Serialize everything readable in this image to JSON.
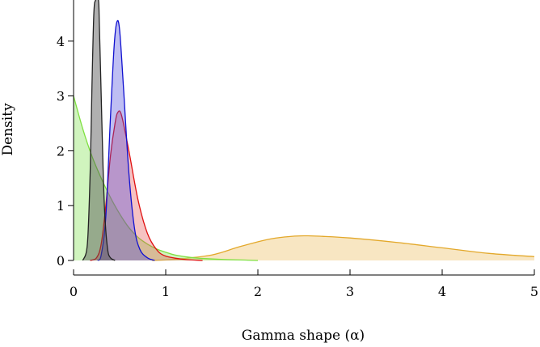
{
  "chart_data": {
    "type": "area",
    "title": "",
    "xlabel": "Gamma shape (α)",
    "ylabel": "Density",
    "xlim": [
      0,
      5
    ],
    "ylim": [
      0,
      4.75
    ],
    "x_ticks": [
      0,
      1,
      2,
      3,
      4,
      5
    ],
    "y_ticks": [
      0,
      1,
      2,
      3,
      4
    ],
    "grid": false,
    "legend": "none",
    "series": [
      {
        "color": "#E3A82A",
        "fill": "rgba(240,200,120,0.45)",
        "points": [
          [
            0.85,
            0
          ],
          [
            1.1,
            0.02
          ],
          [
            1.5,
            0.1
          ],
          [
            1.8,
            0.25
          ],
          [
            2.1,
            0.38
          ],
          [
            2.3,
            0.43
          ],
          [
            2.5,
            0.45
          ],
          [
            2.7,
            0.44
          ],
          [
            3.0,
            0.41
          ],
          [
            3.5,
            0.33
          ],
          [
            4.0,
            0.23
          ],
          [
            4.5,
            0.13
          ],
          [
            5.0,
            0.07
          ]
        ]
      },
      {
        "color": "#7FE040",
        "fill": "rgba(150,230,110,0.45)",
        "points": [
          [
            0,
            3.0
          ],
          [
            0.1,
            2.4
          ],
          [
            0.2,
            1.9
          ],
          [
            0.3,
            1.5
          ],
          [
            0.4,
            1.15
          ],
          [
            0.5,
            0.85
          ],
          [
            0.6,
            0.6
          ],
          [
            0.7,
            0.42
          ],
          [
            0.8,
            0.3
          ],
          [
            0.9,
            0.21
          ],
          [
            1.0,
            0.15
          ],
          [
            1.1,
            0.1
          ],
          [
            1.3,
            0.05
          ],
          [
            1.6,
            0.02
          ],
          [
            2.0,
            0.0
          ]
        ]
      },
      {
        "color": "#E01010",
        "fill": "rgba(230,80,80,0.35)",
        "points": [
          [
            0.18,
            0
          ],
          [
            0.25,
            0.05
          ],
          [
            0.3,
            0.3
          ],
          [
            0.35,
            1.0
          ],
          [
            0.4,
            1.9
          ],
          [
            0.45,
            2.5
          ],
          [
            0.48,
            2.7
          ],
          [
            0.52,
            2.65
          ],
          [
            0.6,
            2.0
          ],
          [
            0.7,
            1.1
          ],
          [
            0.8,
            0.5
          ],
          [
            0.9,
            0.2
          ],
          [
            1.0,
            0.08
          ],
          [
            1.2,
            0.02
          ],
          [
            1.4,
            0.0
          ]
        ]
      },
      {
        "color": "#1010D0",
        "fill": "rgba(70,70,220,0.35)",
        "points": [
          [
            0.26,
            0
          ],
          [
            0.3,
            0.1
          ],
          [
            0.35,
            0.8
          ],
          [
            0.4,
            2.6
          ],
          [
            0.44,
            3.9
          ],
          [
            0.47,
            4.35
          ],
          [
            0.5,
            4.2
          ],
          [
            0.54,
            3.2
          ],
          [
            0.6,
            1.6
          ],
          [
            0.66,
            0.6
          ],
          [
            0.72,
            0.2
          ],
          [
            0.8,
            0.05
          ],
          [
            0.88,
            0.0
          ]
        ]
      },
      {
        "color": "#222222",
        "fill": "rgba(80,80,80,0.45)",
        "points": [
          [
            0.1,
            0
          ],
          [
            0.15,
            0.3
          ],
          [
            0.18,
            1.6
          ],
          [
            0.2,
            3.2
          ],
          [
            0.22,
            4.5
          ],
          [
            0.24,
            4.75
          ],
          [
            0.27,
            4.75
          ],
          [
            0.28,
            4.3
          ],
          [
            0.3,
            3.0
          ],
          [
            0.32,
            1.7
          ],
          [
            0.34,
            0.8
          ],
          [
            0.37,
            0.2
          ],
          [
            0.4,
            0.05
          ],
          [
            0.45,
            0.0
          ]
        ]
      }
    ]
  }
}
